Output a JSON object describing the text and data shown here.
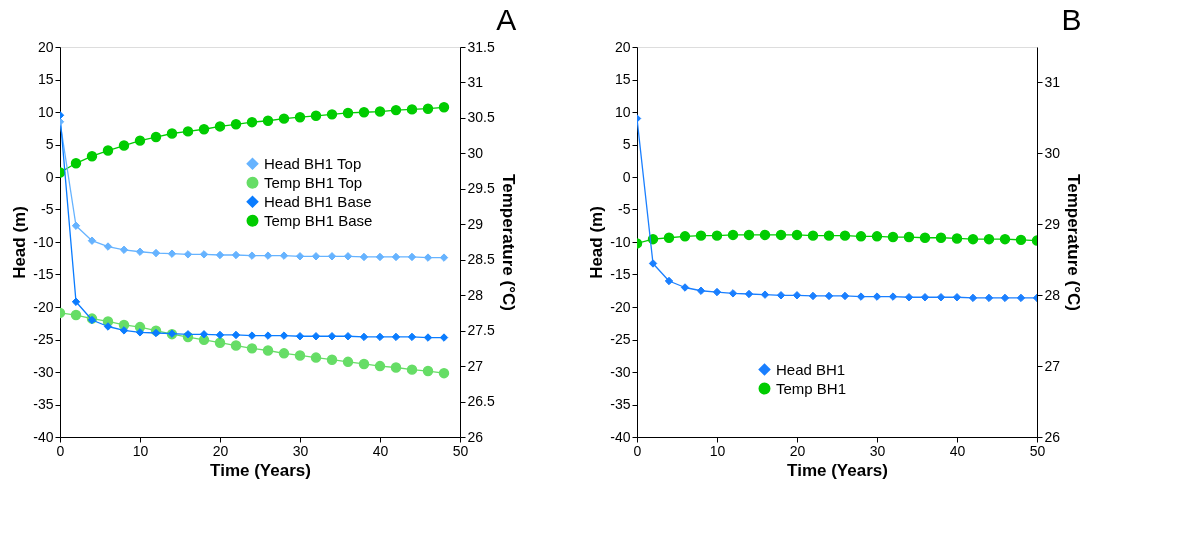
{
  "chart_data": [
    {
      "type": "line",
      "title": "A",
      "xlabel": "Time (Years)",
      "ylabel": "Head (m)",
      "y2label": "Temperature (°C)",
      "x": [
        0,
        2,
        4,
        6,
        8,
        10,
        12,
        14,
        16,
        18,
        20,
        22,
        24,
        26,
        28,
        30,
        32,
        34,
        36,
        38,
        40,
        42,
        44,
        46,
        48
      ],
      "xlim": [
        0,
        50
      ],
      "xticks": [
        0,
        10,
        20,
        30,
        40,
        50
      ],
      "ylim": [
        -40,
        20
      ],
      "yticks": [
        -40,
        -35,
        -30,
        -25,
        -20,
        -15,
        -10,
        -5,
        0,
        5,
        10,
        15,
        20
      ],
      "y2lim": [
        26,
        31.5
      ],
      "y2ticks": [
        26,
        26.5,
        27,
        27.5,
        28,
        28.5,
        29,
        29.5,
        30,
        30.5,
        31,
        31.5
      ],
      "legend": "right",
      "grid": false,
      "series": [
        {
          "name": "Head BH1 Top",
          "color": "#66b3ff",
          "marker": "diamond",
          "values": [
            8.5,
            -7.5,
            -9.8,
            -10.7,
            -11.2,
            -11.5,
            -11.7,
            -11.8,
            -11.9,
            -11.9,
            -12.0,
            -12.0,
            -12.1,
            -12.1,
            -12.1,
            -12.2,
            -12.2,
            -12.2,
            -12.2,
            -12.3,
            -12.3,
            -12.3,
            -12.3,
            -12.4,
            -12.4
          ]
        },
        {
          "name": "Temp BH1 Top",
          "color": "#66dd66",
          "marker": "circle",
          "axis": "y2",
          "values": [
            27.75,
            27.72,
            27.67,
            27.63,
            27.58,
            27.55,
            27.5,
            27.45,
            27.41,
            27.37,
            27.33,
            27.29,
            27.25,
            27.22,
            27.18,
            27.15,
            27.12,
            27.09,
            27.06,
            27.03,
            27.0,
            26.98,
            26.95,
            26.93,
            26.9
          ]
        },
        {
          "name": "Head BH1 Base",
          "color": "#0a7cff",
          "marker": "diamond",
          "values": [
            9.5,
            -19.2,
            -22.0,
            -23.0,
            -23.6,
            -23.9,
            -24.0,
            -24.1,
            -24.2,
            -24.2,
            -24.3,
            -24.3,
            -24.4,
            -24.4,
            -24.4,
            -24.5,
            -24.5,
            -24.5,
            -24.5,
            -24.6,
            -24.6,
            -24.6,
            -24.6,
            -24.7,
            -24.7
          ]
        },
        {
          "name": "Temp BH1 Base",
          "color": "#00cc00",
          "marker": "circle",
          "axis": "y2",
          "values": [
            29.73,
            29.86,
            29.96,
            30.04,
            30.11,
            30.18,
            30.23,
            30.28,
            30.31,
            30.34,
            30.38,
            30.41,
            30.44,
            30.46,
            30.49,
            30.51,
            30.53,
            30.55,
            30.57,
            30.58,
            30.59,
            30.61,
            30.62,
            30.63,
            30.65
          ]
        }
      ]
    },
    {
      "type": "line",
      "title": "B",
      "xlabel": "Time (Years)",
      "ylabel": "Head (m)",
      "y2label": "Temperature (°C)",
      "x": [
        0,
        2,
        4,
        6,
        8,
        10,
        12,
        14,
        16,
        18,
        20,
        22,
        24,
        26,
        28,
        30,
        32,
        34,
        36,
        38,
        40,
        42,
        44,
        46,
        48,
        50
      ],
      "xlim": [
        0,
        50
      ],
      "xticks": [
        0,
        10,
        20,
        30,
        40,
        50
      ],
      "ylim": [
        -40,
        20
      ],
      "yticks": [
        -40,
        -35,
        -30,
        -25,
        -20,
        -15,
        -10,
        -5,
        0,
        5,
        10,
        15,
        20
      ],
      "y2lim": [
        26,
        31.5
      ],
      "y2ticks": [
        26,
        27,
        28,
        29,
        30,
        31
      ],
      "legend": "bottom",
      "grid": false,
      "series": [
        {
          "name": "Head BH1",
          "color": "#1a7fff",
          "marker": "diamond",
          "values": [
            9,
            -13.3,
            -16,
            -17,
            -17.5,
            -17.7,
            -17.9,
            -18.0,
            -18.1,
            -18.2,
            -18.2,
            -18.3,
            -18.3,
            -18.3,
            -18.4,
            -18.4,
            -18.4,
            -18.5,
            -18.5,
            -18.5,
            -18.5,
            -18.6,
            -18.6,
            -18.6,
            -18.6,
            -18.6
          ]
        },
        {
          "name": "Temp BH1",
          "color": "#00cc00",
          "marker": "circle",
          "axis": "y2",
          "values": [
            28.73,
            28.79,
            28.81,
            28.83,
            28.84,
            28.84,
            28.85,
            28.85,
            28.85,
            28.85,
            28.85,
            28.84,
            28.84,
            28.84,
            28.83,
            28.83,
            28.82,
            28.82,
            28.81,
            28.81,
            28.8,
            28.79,
            28.79,
            28.79,
            28.78,
            28.77
          ]
        }
      ]
    }
  ]
}
